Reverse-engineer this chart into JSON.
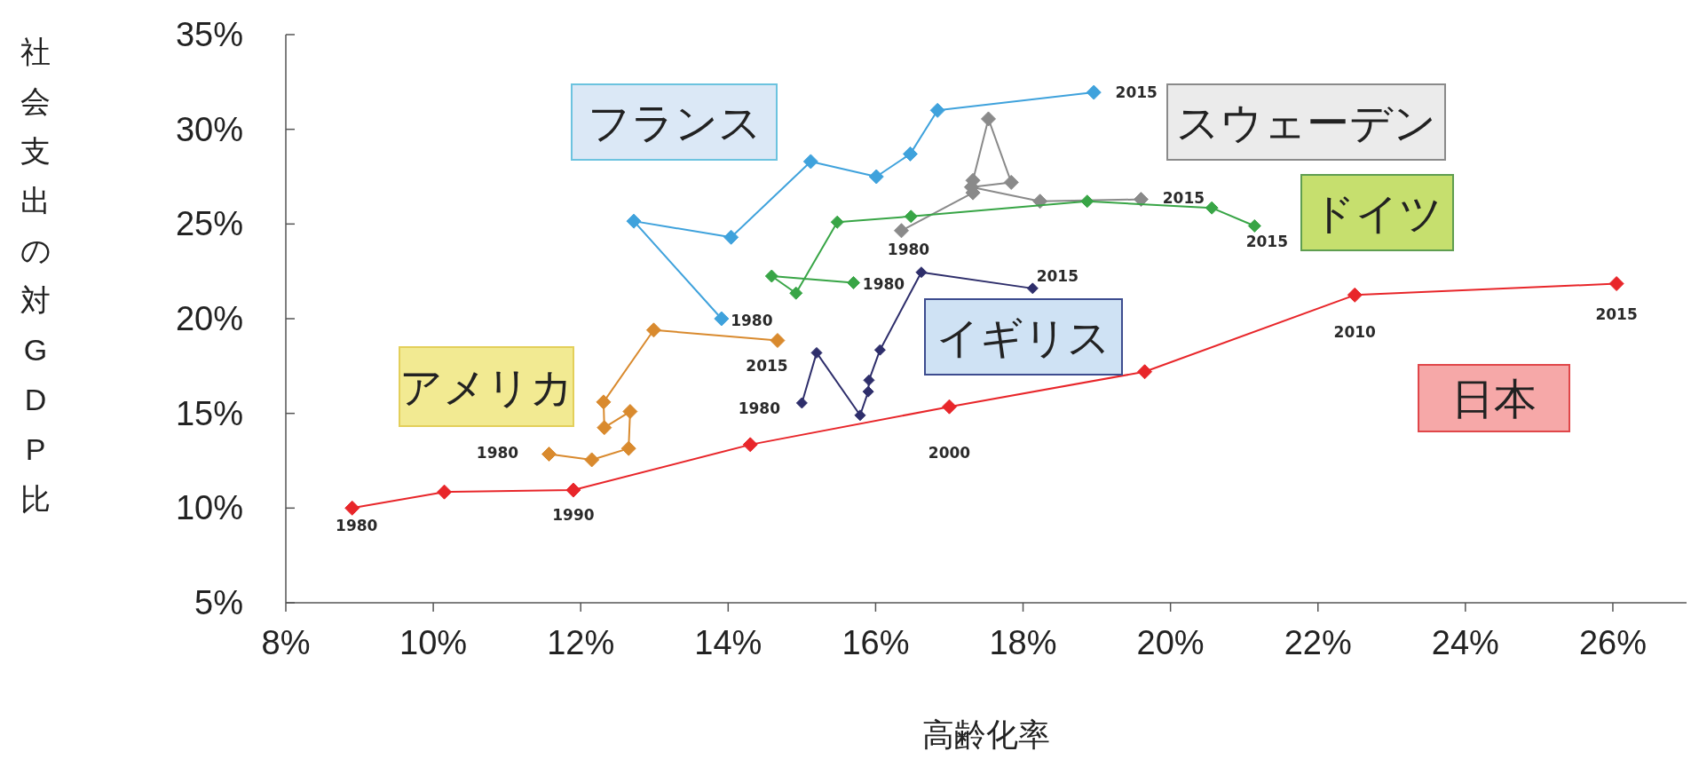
{
  "chart_data": {
    "type": "line",
    "xlabel": "高齢化率",
    "ylabel": "社会支出の対GDP比",
    "xlim": [
      8,
      27
    ],
    "ylim": [
      5,
      35
    ],
    "xticks": [
      {
        "value": 8,
        "label": "8%"
      },
      {
        "value": 10,
        "label": "10%"
      },
      {
        "value": 12,
        "label": "12%"
      },
      {
        "value": 14,
        "label": "14%"
      },
      {
        "value": 16,
        "label": "16%"
      },
      {
        "value": 18,
        "label": "18%"
      },
      {
        "value": 20,
        "label": "20%"
      },
      {
        "value": 22,
        "label": "22%"
      },
      {
        "value": 24,
        "label": "24%"
      },
      {
        "value": 26,
        "label": "26%"
      }
    ],
    "yticks": [
      {
        "value": 5,
        "label": "5%"
      },
      {
        "value": 10,
        "label": "10%"
      },
      {
        "value": 15,
        "label": "15%"
      },
      {
        "value": 20,
        "label": "20%"
      },
      {
        "value": 25,
        "label": "25%"
      },
      {
        "value": 30,
        "label": "30%"
      },
      {
        "value": 35,
        "label": "35%"
      }
    ],
    "grid": false,
    "marker": "diamond",
    "line_style": "solid",
    "series": [
      {
        "name": "日本",
        "color": "#e8262a",
        "x": [
          8.9,
          10.15,
          11.9,
          14.3,
          17.0,
          19.65,
          22.5,
          26.05
        ],
        "values": [
          10.0,
          10.85,
          10.95,
          13.35,
          15.35,
          17.2,
          21.25,
          21.85
        ]
      },
      {
        "name": "アメリカ",
        "color": "#d98a2e",
        "x": [
          11.57,
          12.15,
          12.65,
          12.67,
          12.32,
          12.31,
          12.99,
          14.67
        ],
        "values": [
          12.85,
          12.55,
          13.15,
          15.1,
          14.25,
          15.6,
          19.4,
          18.85
        ]
      },
      {
        "name": "フランス",
        "color": "#3fa2dc",
        "x": [
          13.91,
          12.72,
          14.04,
          15.12,
          16.01,
          16.47,
          16.84,
          18.96
        ],
        "values": [
          20.0,
          25.15,
          24.3,
          28.3,
          27.5,
          28.7,
          31.0,
          31.95
        ]
      },
      {
        "name": "スウェーデン",
        "color": "#8a8a8a",
        "x": [
          16.35,
          17.32,
          17.32,
          17.53,
          17.84,
          17.3,
          18.23,
          19.6
        ],
        "values": [
          24.65,
          26.65,
          27.3,
          30.55,
          27.2,
          26.95,
          26.2,
          26.3
        ]
      },
      {
        "name": "ドイツ",
        "color": "#38a546",
        "x": [
          15.7,
          14.59,
          14.92,
          15.48,
          16.48,
          18.87,
          20.56,
          21.14
        ],
        "values": [
          21.9,
          22.25,
          21.35,
          25.1,
          25.4,
          26.2,
          25.85,
          24.9
        ]
      },
      {
        "name": "イギリス",
        "color": "#2e2e6b",
        "x": [
          15.0,
          15.2,
          15.79,
          15.9,
          15.91,
          16.06,
          16.62,
          18.13
        ],
        "values": [
          15.55,
          18.2,
          14.9,
          16.15,
          16.75,
          18.35,
          22.45,
          21.6
        ]
      }
    ],
    "annotations": [
      {
        "text": "1980",
        "x": 8.9,
        "y": 10.0
      },
      {
        "text": "1990",
        "x": 11.9,
        "y": 10.95
      },
      {
        "text": "2000",
        "x": 17.0,
        "y": 15.35
      },
      {
        "text": "2010",
        "x": 22.5,
        "y": 21.25
      },
      {
        "text": "2015",
        "x": 26.05,
        "y": 21.85
      },
      {
        "text": "1980",
        "x": 11.57,
        "y": 12.85
      },
      {
        "text": "2015",
        "x": 14.67,
        "y": 18.85
      },
      {
        "text": "1980",
        "x": 13.91,
        "y": 20.0
      },
      {
        "text": "2015",
        "x": 18.96,
        "y": 31.95
      },
      {
        "text": "1980",
        "x": 16.35,
        "y": 24.65
      },
      {
        "text": "2015",
        "x": 19.6,
        "y": 26.3
      },
      {
        "text": "1980",
        "x": 15.7,
        "y": 21.9
      },
      {
        "text": "2015",
        "x": 21.14,
        "y": 24.9
      },
      {
        "text": "1980",
        "x": 15.0,
        "y": 15.55
      },
      {
        "text": "2015",
        "x": 18.13,
        "y": 21.6
      }
    ]
  }
}
